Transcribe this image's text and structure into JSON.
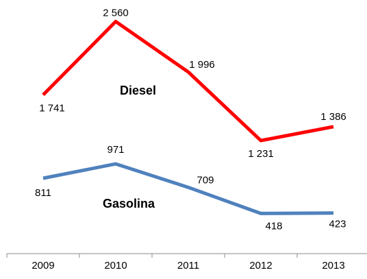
{
  "chart_data": {
    "type": "line",
    "categories": [
      "2009",
      "2010",
      "2011",
      "2012",
      "2013"
    ],
    "series": [
      {
        "name": "Diesel",
        "color": "#ff0000",
        "values": [
          1741,
          2560,
          1996,
          1231,
          1386
        ],
        "value_labels": [
          "1 741",
          "2 560",
          "1 996",
          "1 231",
          "1 386"
        ]
      },
      {
        "name": "Gasolina",
        "color": "#4f81bd",
        "values": [
          811,
          971,
          709,
          418,
          423
        ],
        "value_labels": [
          "811",
          "971",
          "709",
          "418",
          "423"
        ]
      }
    ],
    "ylim": [
      0,
      2800
    ]
  }
}
